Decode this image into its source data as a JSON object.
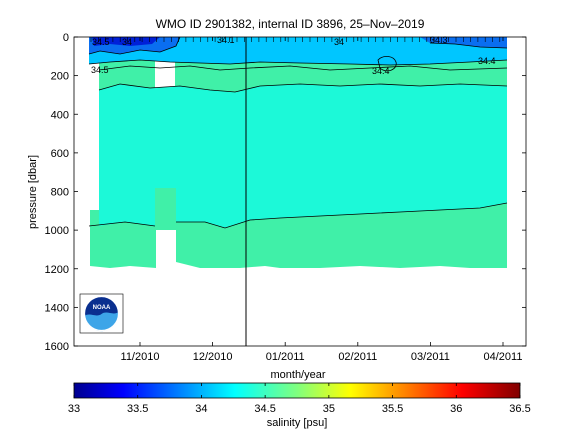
{
  "chart_data": {
    "type": "heatmap",
    "title": "WMO ID 2901382, internal ID 3896, 25–Nov–2019",
    "xlabel": "month/year",
    "ylabel": "pressure [dbar]",
    "x_ticks": [
      "11/2010",
      "12/2010",
      "01/2011",
      "02/2011",
      "03/2011",
      "04/2011"
    ],
    "y_ticks": [
      "0",
      "200",
      "400",
      "600",
      "800",
      "1000",
      "1200",
      "1400",
      "1600"
    ],
    "ylim": [
      1600,
      0
    ],
    "y_reversed": true,
    "colorbar": {
      "label": "salinity [psu]",
      "ticks": [
        "33",
        "33.5",
        "34",
        "34.5",
        "35",
        "35.5",
        "36",
        "36.5"
      ],
      "range": [
        33,
        36.5
      ],
      "colormap": "jet"
    },
    "contour_labels": [
      "34.5",
      "34.5",
      "34",
      "34.1",
      "34",
      "34.4",
      "34.4",
      "34.3"
    ],
    "marker_date": "2010-12-24",
    "logo": "NOAA"
  }
}
